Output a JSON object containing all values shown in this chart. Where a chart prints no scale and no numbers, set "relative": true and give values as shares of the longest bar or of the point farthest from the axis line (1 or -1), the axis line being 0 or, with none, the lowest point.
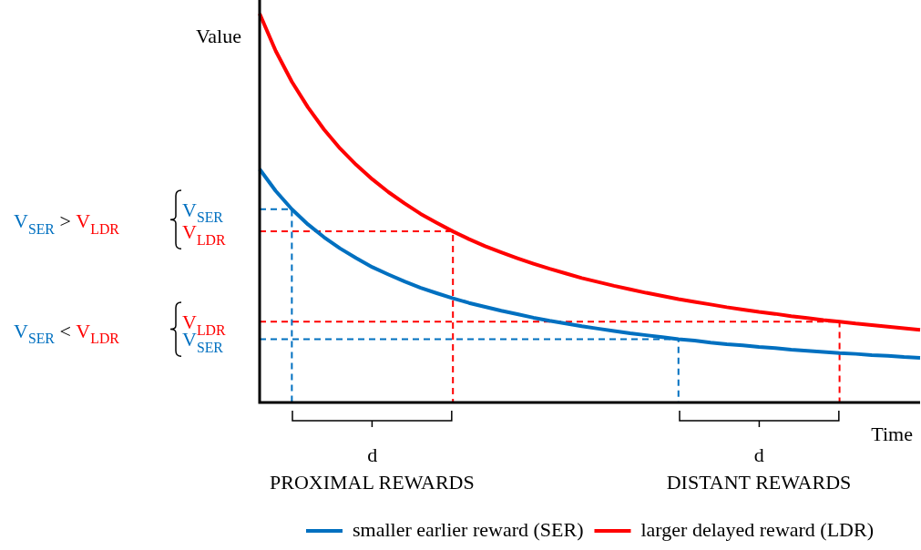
{
  "chart_data": {
    "type": "line",
    "relative": true,
    "xlabel": "Time",
    "ylabel": "Value",
    "categories": [
      null,
      null,
      null,
      null,
      null,
      null,
      null,
      null,
      null,
      null,
      null,
      null,
      null,
      null,
      null,
      null,
      null,
      null,
      null,
      null,
      null,
      null,
      null,
      null,
      null,
      null,
      null,
      null,
      null,
      null,
      null,
      null,
      null,
      null,
      null,
      null,
      null,
      null,
      null,
      null,
      null,
      null
    ],
    "series": [
      {
        "name": "smaller earlier reward (SER)",
        "color": "#0070c0",
        "values": [
          0.6,
          0.544,
          0.497,
          0.458,
          0.425,
          0.396,
          0.371,
          0.348,
          0.329,
          0.311,
          0.295,
          0.281,
          0.268,
          0.256,
          0.246,
          0.236,
          0.227,
          0.218,
          0.21,
          0.203,
          0.196,
          0.19,
          0.184,
          0.178,
          0.173,
          0.168,
          0.163,
          0.159,
          0.154,
          0.15,
          0.147,
          0.143,
          0.14,
          0.136,
          0.133,
          0.13,
          0.127,
          0.125,
          0.122,
          0.12,
          0.117,
          0.115
        ]
      },
      {
        "name": "larger delayed reward (LDR)",
        "color": "#ff0000",
        "values": [
          1,
          0.904,
          0.825,
          0.759,
          0.702,
          0.653,
          0.611,
          0.574,
          0.541,
          0.512,
          0.485,
          0.462,
          0.44,
          0.42,
          0.402,
          0.386,
          0.371,
          0.357,
          0.344,
          0.332,
          0.32,
          0.31,
          0.3,
          0.291,
          0.282,
          0.274,
          0.266,
          0.259,
          0.252,
          0.245,
          0.239,
          0.233,
          0.228,
          0.222,
          0.217,
          0.212,
          0.208,
          0.203,
          0.199,
          0.195,
          0.191,
          0.187
        ]
      },
      {
        "type": "step",
        "line_style": "dashed",
        "color": "#0070c0",
        "values": [
          0.497,
          0.497,
          0,
          null,
          null,
          null,
          null,
          null,
          null,
          null,
          null,
          null,
          null,
          null,
          null,
          null,
          null,
          null,
          null,
          null,
          null,
          null,
          null,
          null,
          null,
          null,
          null,
          null,
          null,
          null,
          null,
          null,
          null,
          null,
          null,
          null,
          null,
          null,
          null,
          null,
          null,
          null
        ]
      },
      {
        "type": "step",
        "line_style": "dashed",
        "color": "#ff0000",
        "values": [
          0.44,
          0.44,
          0.44,
          0.44,
          0.44,
          0.44,
          0.44,
          0.44,
          0.44,
          0.44,
          0.44,
          0.44,
          0,
          null,
          null,
          null,
          null,
          null,
          null,
          null,
          null,
          null,
          null,
          null,
          null,
          null,
          null,
          null,
          null,
          null,
          null,
          null,
          null,
          null,
          null,
          null,
          null,
          null,
          null,
          null,
          null,
          null
        ]
      },
      {
        "type": "step",
        "line_style": "dashed",
        "color": "#ff0000",
        "values": [
          0.208,
          0.208,
          0.208,
          0.208,
          0.208,
          0.208,
          0.208,
          0.208,
          0.208,
          0.208,
          0.208,
          0.208,
          0.208,
          0.208,
          0.208,
          0.208,
          0.208,
          0.208,
          0.208,
          0.208,
          0.208,
          0.208,
          0.208,
          0.208,
          0.208,
          0.208,
          0.208,
          0.208,
          0.208,
          0.208,
          0.208,
          0.208,
          0.208,
          0.208,
          0.208,
          0.208,
          0,
          null,
          null,
          null,
          null,
          null
        ]
      },
      {
        "type": "step",
        "line_style": "dashed",
        "color": "#0070c0",
        "values": [
          0.163,
          0.163,
          0.163,
          0.163,
          0.163,
          0.163,
          0.163,
          0.163,
          0.163,
          0.163,
          0.163,
          0.163,
          0.163,
          0.163,
          0.163,
          0.163,
          0.163,
          0.163,
          0.163,
          0.163,
          0.163,
          0.163,
          0.163,
          0.163,
          0.163,
          0.163,
          0,
          null,
          null,
          null,
          null,
          null,
          null,
          null,
          null,
          null,
          null,
          null,
          null,
          null,
          null,
          null
        ]
      }
    ],
    "annotations": [
      "V$_{SER}$ > V$_{LDR}$",
      "V$_{SER}$ < V$_{LDR}$",
      "d",
      "PROXIMAL REWARDS",
      "d",
      "DISTANT REWARDS",
      "V$_{SER}$",
      "V$_{LDR}$",
      "V$_{LDR}$",
      "V$_{SER}$"
    ],
    "marker": "none",
    "line_style": "solid",
    "grid": false,
    "legend": "bottom"
  }
}
